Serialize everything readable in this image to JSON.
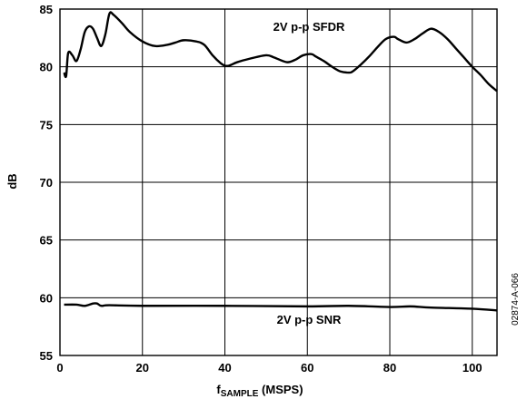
{
  "chart_data": {
    "type": "line",
    "xlabel_main": "f",
    "xlabel_sub": "SAMPLE",
    "xlabel_unit": " (MSPS)",
    "ylabel": "dB",
    "xlim": [
      0,
      106
    ],
    "ylim": [
      55,
      85
    ],
    "x_ticks": [
      "0",
      "20",
      "40",
      "60",
      "80",
      "100"
    ],
    "y_ticks": [
      "55",
      "60",
      "65",
      "70",
      "75",
      "80",
      "85"
    ],
    "x_tick_values": [
      0,
      20,
      40,
      60,
      80,
      100
    ],
    "y_tick_values": [
      55,
      60,
      65,
      70,
      75,
      80,
      85
    ],
    "grid": true,
    "annotations": [
      "2V p-p SFDR",
      "2V p-p SNR"
    ],
    "figure_code": "02874-A-066",
    "series": [
      {
        "name": "2V p-p SFDR",
        "x": [
          1,
          1.5,
          2,
          3,
          4,
          5,
          6,
          7,
          8,
          9,
          10,
          11,
          12,
          13,
          15,
          17,
          20,
          23,
          26,
          28,
          30,
          33,
          35,
          37,
          39,
          40,
          41,
          43,
          46,
          50,
          52,
          55,
          57,
          59,
          61,
          62,
          64,
          66,
          68,
          70,
          71,
          73,
          75,
          77,
          79,
          81,
          82,
          84,
          86,
          88,
          90,
          92,
          94,
          96,
          98,
          100,
          102,
          104,
          106
        ],
        "y": [
          79.5,
          79.2,
          81.2,
          81.0,
          80.5,
          81.5,
          83.0,
          83.5,
          83.3,
          82.5,
          81.8,
          82.8,
          84.6,
          84.5,
          83.8,
          83.0,
          82.2,
          81.8,
          81.9,
          82.1,
          82.3,
          82.2,
          81.9,
          81.0,
          80.3,
          80.1,
          80.1,
          80.4,
          80.7,
          81.0,
          80.8,
          80.4,
          80.6,
          81.0,
          81.1,
          80.9,
          80.5,
          80.0,
          79.6,
          79.5,
          79.6,
          80.2,
          80.9,
          81.7,
          82.4,
          82.6,
          82.4,
          82.1,
          82.4,
          82.9,
          83.3,
          83.0,
          82.4,
          81.6,
          80.8,
          80.0,
          79.3,
          78.5,
          77.9
        ]
      },
      {
        "name": "2V p-p SNR",
        "x": [
          1,
          4,
          6,
          8,
          9,
          10,
          12,
          20,
          40,
          60,
          70,
          80,
          85,
          90,
          100,
          106
        ],
        "y": [
          59.4,
          59.4,
          59.3,
          59.5,
          59.5,
          59.3,
          59.35,
          59.3,
          59.3,
          59.25,
          59.3,
          59.2,
          59.25,
          59.15,
          59.05,
          58.9
        ]
      }
    ]
  }
}
